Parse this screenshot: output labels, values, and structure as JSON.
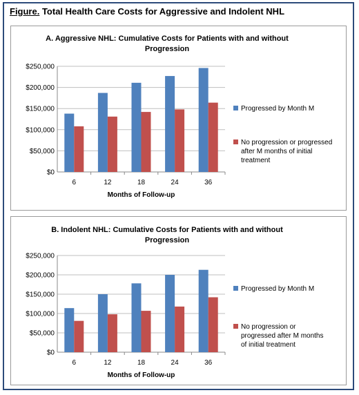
{
  "figure": {
    "title_lead": "Figure.",
    "title_rest": " Total Health Care Costs for Aggressive and Indolent NHL"
  },
  "colors": {
    "series1": "#4f81bd",
    "series2": "#c0504d",
    "grid": "#bfbfbf",
    "axis": "#888888"
  },
  "chart_data": [
    {
      "type": "bar",
      "title_lines": [
        "A. Aggressive NHL: Cumulative Costs for Patients with and without",
        "Progression"
      ],
      "categories": [
        "6",
        "12",
        "18",
        "24",
        "36"
      ],
      "xlabel": "Months of Follow-up",
      "ylabel": "",
      "ylim": [
        0,
        250000
      ],
      "y_ticks": [
        0,
        50000,
        100000,
        150000,
        200000,
        250000
      ],
      "y_tick_labels": [
        "$0",
        "$50,000",
        "$100,000",
        "$150,000",
        "$200,000",
        "$250,000"
      ],
      "grid": true,
      "legend_position": "right",
      "series": [
        {
          "name": "Progressed by Month M",
          "name_lines": [
            "Progressed by Month M"
          ],
          "values": [
            138000,
            187000,
            211000,
            227000,
            246000
          ]
        },
        {
          "name": "No progression or progressed after M months of initial treatment",
          "name_lines": [
            "No progression or progressed",
            "after M months of initial",
            "treatment"
          ],
          "values": [
            108000,
            131000,
            142000,
            148000,
            164000
          ]
        }
      ]
    },
    {
      "type": "bar",
      "title_lines": [
        "B. Indolent NHL: Cumulative Costs for Patients with and without",
        "Progression"
      ],
      "categories": [
        "6",
        "12",
        "18",
        "24",
        "36"
      ],
      "xlabel": "Months of Follow-up",
      "ylabel": "",
      "ylim": [
        0,
        250000
      ],
      "y_ticks": [
        0,
        50000,
        100000,
        150000,
        200000,
        250000
      ],
      "y_tick_labels": [
        "$0",
        "$50,000",
        "$100,000",
        "$150,000",
        "$200,000",
        "$250,000"
      ],
      "grid": true,
      "legend_position": "right",
      "series": [
        {
          "name": "Progressed by Month M",
          "name_lines": [
            "Progressed by Month M"
          ],
          "values": [
            114000,
            150000,
            178000,
            200000,
            213000
          ]
        },
        {
          "name": "No progression or progressed after M months of initial treatment",
          "name_lines": [
            "No progression or",
            "progressed after M months",
            "of initial treatment"
          ],
          "values": [
            81000,
            98000,
            107000,
            118000,
            142000
          ]
        }
      ]
    }
  ]
}
